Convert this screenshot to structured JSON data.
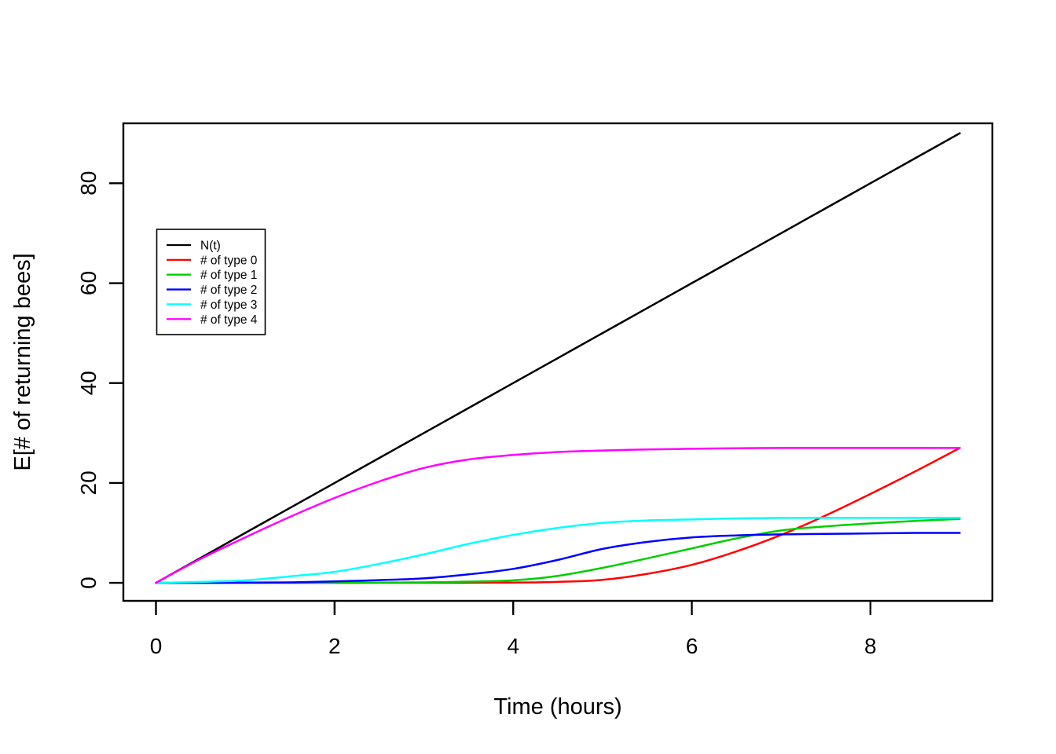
{
  "chart_data": {
    "type": "line",
    "title": "",
    "xlabel": "Time (hours)",
    "ylabel": "E[# of returning bees]",
    "x_ticks": [
      0,
      2,
      4,
      6,
      8
    ],
    "y_ticks": [
      0,
      20,
      40,
      60,
      80
    ],
    "xlim": [
      -0.365,
      9.365
    ],
    "ylim": [
      -3.6,
      92.0
    ],
    "grid": false,
    "legend_position": "topleft",
    "x": [
      0,
      0.5,
      1,
      1.5,
      2,
      2.5,
      3,
      3.5,
      4,
      4.5,
      5,
      5.5,
      6,
      6.5,
      7,
      7.5,
      8,
      8.5,
      9
    ],
    "series": [
      {
        "name": "N(t)",
        "color": "#000000",
        "values": [
          0,
          5,
          10,
          15,
          20,
          25,
          30,
          35,
          40,
          45,
          50,
          55,
          60,
          65,
          70,
          75,
          80,
          85,
          90
        ]
      },
      {
        "name": "# of type 0",
        "color": "#FF0000",
        "values": [
          0,
          0,
          0,
          0,
          0,
          0.01,
          0.02,
          0.03,
          0.06,
          0.2,
          0.6,
          1.8,
          3.6,
          6.3,
          9.6,
          13.5,
          17.8,
          22.3,
          27
        ]
      },
      {
        "name": "# of type 1",
        "color": "#00CD00",
        "values": [
          0,
          0,
          0,
          0.01,
          0.02,
          0.05,
          0.1,
          0.25,
          0.5,
          1.4,
          3,
          4.9,
          6.9,
          8.9,
          10.5,
          11.3,
          11.9,
          12.4,
          12.8
        ]
      },
      {
        "name": "# of type 2",
        "color": "#0000FF",
        "values": [
          0,
          0,
          0.05,
          0.1,
          0.3,
          0.55,
          0.9,
          1.7,
          2.8,
          4.6,
          6.8,
          8.2,
          9.1,
          9.5,
          9.7,
          9.8,
          9.9,
          10,
          10
        ]
      },
      {
        "name": "# of type 3",
        "color": "#00FFFF",
        "values": [
          0,
          0.2,
          0.5,
          1.3,
          2.2,
          3.8,
          5.7,
          7.8,
          9.6,
          11,
          12,
          12.5,
          12.7,
          12.9,
          13,
          13,
          13,
          13,
          13
        ]
      },
      {
        "name": "# of type 4",
        "color": "#FF00FF",
        "values": [
          0,
          4.8,
          9.1,
          13.2,
          17,
          20.3,
          23,
          24.7,
          25.6,
          26.2,
          26.5,
          26.7,
          26.85,
          26.95,
          27,
          27,
          27,
          27,
          27
        ]
      }
    ]
  }
}
